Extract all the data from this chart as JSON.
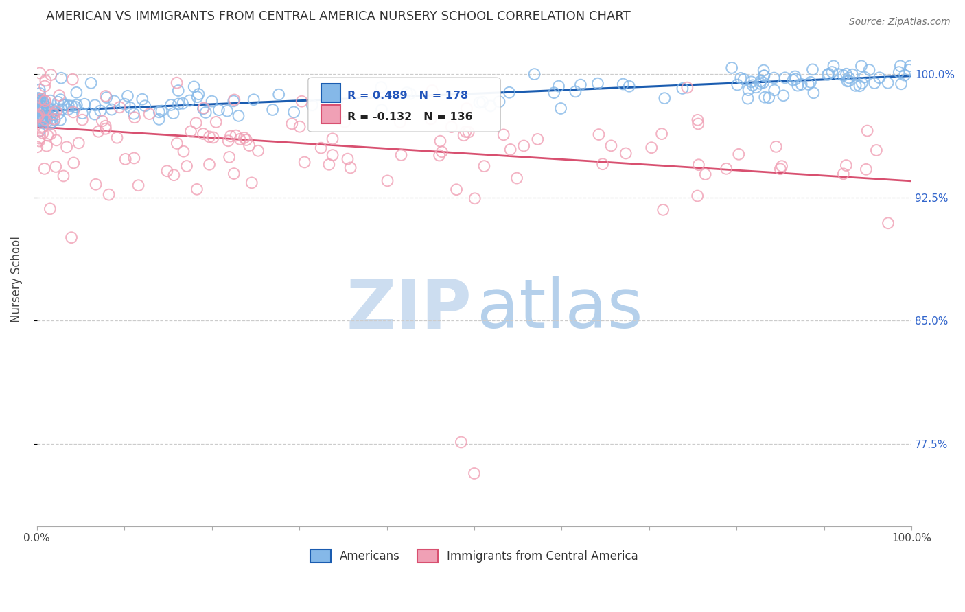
{
  "title": "AMERICAN VS IMMIGRANTS FROM CENTRAL AMERICA NURSERY SCHOOL CORRELATION CHART",
  "source": "Source: ZipAtlas.com",
  "ylabel": "Nursery School",
  "ytick_labels": [
    "100.0%",
    "92.5%",
    "85.0%",
    "77.5%"
  ],
  "ytick_values": [
    1.0,
    0.925,
    0.85,
    0.775
  ],
  "ymin": 0.725,
  "ymax": 1.025,
  "xmin": 0.0,
  "xmax": 1.0,
  "legend_R_blue": "R = 0.489",
  "legend_N_blue": "N = 178",
  "legend_R_pink": "R = -0.132",
  "legend_N_pink": "N = 136",
  "legend_label_blue": "Americans",
  "legend_label_pink": "Immigrants from Central America",
  "blue_color": "#85B8E8",
  "pink_color": "#F0A0B5",
  "blue_line_color": "#1A5CB0",
  "pink_line_color": "#D85070",
  "background_color": "#ffffff",
  "grid_color": "#cccccc",
  "blue_trend_start_y": 0.9775,
  "blue_trend_end_y": 0.999,
  "pink_trend_start_y": 0.968,
  "pink_trend_end_y": 0.935,
  "title_fontsize": 13,
  "source_fontsize": 10,
  "tick_fontsize": 11,
  "legend_fontsize": 12
}
